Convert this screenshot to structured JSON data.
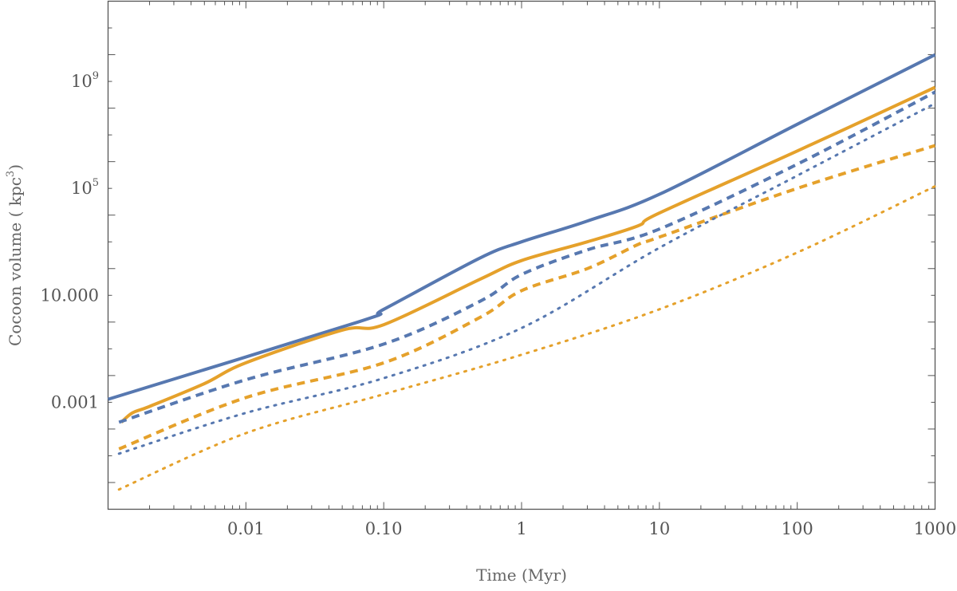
{
  "chart_data": {
    "type": "line",
    "xlabel": "Time (Myr)",
    "ylabel_parts": [
      "Cocoon volume ( kpc",
      "3",
      ")"
    ],
    "x_scale": "log",
    "y_scale": "log",
    "xlim": [
      0.001,
      1000
    ],
    "ylim": [
      1e-07,
      1000000000000.0
    ],
    "grid": false,
    "x_ticks": [
      {
        "value": 0.01,
        "label": "0.01"
      },
      {
        "value": 0.1,
        "label": "0.10"
      },
      {
        "value": 1,
        "label": "1"
      },
      {
        "value": 10,
        "label": "10"
      },
      {
        "value": 100,
        "label": "100"
      },
      {
        "value": 1000,
        "label": "1000"
      }
    ],
    "y_ticks": [
      {
        "value": 0.001,
        "base": "0.001",
        "exp": ""
      },
      {
        "value": 10,
        "base": "10.000",
        "exp": ""
      },
      {
        "value": 100000,
        "base": "10",
        "exp": "5"
      },
      {
        "value": 1000000000,
        "base": "10",
        "exp": "9"
      }
    ],
    "series": [
      {
        "color": "#5778b0",
        "dash": "solid",
        "x": [
          0.001,
          0.065,
          0.1,
          0.5,
          1,
          3,
          10,
          100,
          1000
        ],
        "y": [
          0.0013,
          1.0,
          3.0,
          250,
          1000,
          6000,
          60000,
          25000000.0,
          10000000000.0
        ]
      },
      {
        "color": "#e5a12b",
        "dash": "solid",
        "x": [
          0.00125,
          0.0015,
          0.002,
          0.005,
          0.01,
          0.05,
          0.1,
          0.5,
          1,
          3,
          7,
          10,
          100,
          1000
        ],
        "y": [
          0.00018,
          0.0004,
          0.0007,
          0.005,
          0.03,
          0.5,
          0.8,
          40,
          200,
          1000,
          4000,
          12000,
          2500000.0,
          600000000.0
        ]
      },
      {
        "color": "#5778b0",
        "dash": "dashed",
        "x": [
          0.0012,
          0.01,
          0.1,
          0.5,
          1,
          3,
          10,
          100,
          1000
        ],
        "y": [
          0.00018,
          0.007,
          0.15,
          6,
          60,
          500,
          3000,
          800000,
          400000000.0
        ]
      },
      {
        "color": "#e5a12b",
        "dash": "dashed",
        "x": [
          0.0012,
          0.01,
          0.1,
          0.5,
          1,
          3,
          7,
          10,
          100,
          1000
        ],
        "y": [
          1.8e-05,
          0.0015,
          0.03,
          1.5,
          15,
          100,
          800,
          1500,
          100000,
          4000000.0
        ]
      },
      {
        "color": "#5778b0",
        "dash": "dotted",
        "x": [
          0.0012,
          0.01,
          0.1,
          1,
          10,
          100,
          1000
        ],
        "y": [
          1.2e-05,
          0.0004,
          0.008,
          0.6,
          600,
          300000,
          150000000.0
        ]
      },
      {
        "color": "#e5a12b",
        "dash": "dotted",
        "x": [
          0.0012,
          0.01,
          0.1,
          1,
          10,
          100,
          1000
        ],
        "y": [
          5.5e-07,
          7e-05,
          0.002,
          0.06,
          3,
          400,
          120000
        ]
      }
    ]
  }
}
